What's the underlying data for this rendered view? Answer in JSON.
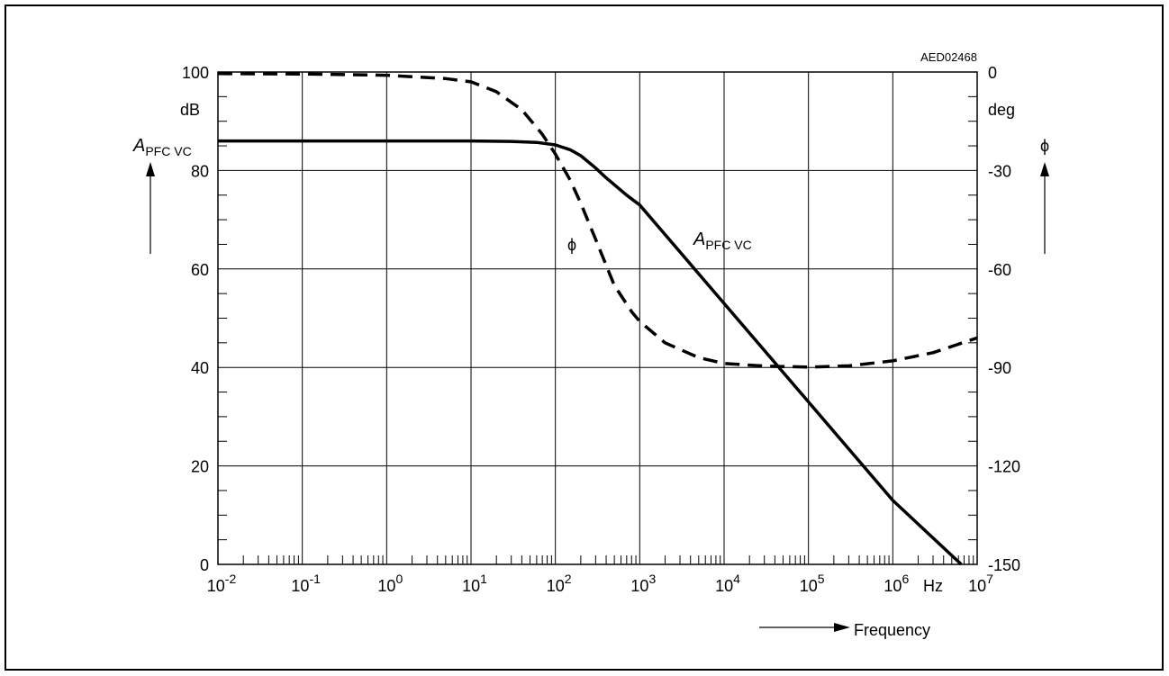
{
  "chart_data": {
    "type": "line",
    "figure_code": "AED02468",
    "x_scale": "log",
    "xlim": [
      0.01,
      10000000
    ],
    "x_tick_values": [
      0.01,
      0.1,
      1,
      10,
      100,
      1000,
      10000,
      100000,
      1000000,
      10000000
    ],
    "x_tick_base": [
      "10",
      "10",
      "10",
      "10",
      "10",
      "10",
      "10",
      "10",
      "10",
      "10"
    ],
    "x_tick_exp": [
      "-2",
      "-1",
      "0",
      "1",
      "2",
      "3",
      "4",
      "5",
      "6",
      "7"
    ],
    "x_unit": "Hz",
    "x_axis_title": "Frequency",
    "y_left": {
      "lim": [
        0,
        100
      ],
      "ticks": [
        0,
        20,
        40,
        60,
        80,
        100
      ],
      "tick_labels": [
        "0",
        "20",
        "40",
        "60",
        "80",
        "100"
      ],
      "unit": "dB",
      "symbol_main": "A",
      "symbol_sub": "PFC VC"
    },
    "y_right": {
      "lim": [
        -150,
        0
      ],
      "ticks": [
        -150,
        -120,
        -90,
        -60,
        -30,
        0
      ],
      "tick_labels": [
        "-150",
        "-120",
        "-90",
        "-60",
        "-30",
        "0"
      ],
      "unit": "deg",
      "symbol": "ϕ"
    },
    "grid": true,
    "series": [
      {
        "name": "A PFC VC",
        "label_main": "A",
        "label_sub": "PFC VC",
        "axis": "left",
        "style": "solid",
        "x": [
          0.01,
          0.1,
          1,
          10,
          30,
          60,
          100,
          150,
          200,
          300,
          400,
          700,
          1000,
          10000,
          100000,
          1000000,
          10000000
        ],
        "y": [
          86,
          86,
          86,
          86,
          85.9,
          85.7,
          85.2,
          84.2,
          83,
          80.5,
          78.5,
          75,
          73,
          53,
          33,
          13,
          -3
        ]
      },
      {
        "name": "ϕ",
        "label": "ϕ",
        "axis": "right",
        "style": "dashed",
        "x": [
          0.01,
          0.1,
          1,
          5,
          10,
          20,
          40,
          70,
          100,
          150,
          200,
          300,
          500,
          800,
          1000,
          2000,
          5000,
          10000,
          30000,
          100000,
          300000,
          1000000,
          3000000,
          10000000
        ],
        "y": [
          -0.5,
          -0.6,
          -1,
          -2,
          -3,
          -6,
          -11.5,
          -19,
          -25,
          -33,
          -40,
          -51,
          -65,
          -73,
          -76,
          -82.5,
          -87,
          -88.8,
          -89.6,
          -89.9,
          -89.5,
          -88,
          -85.5,
          -81
        ]
      }
    ]
  }
}
